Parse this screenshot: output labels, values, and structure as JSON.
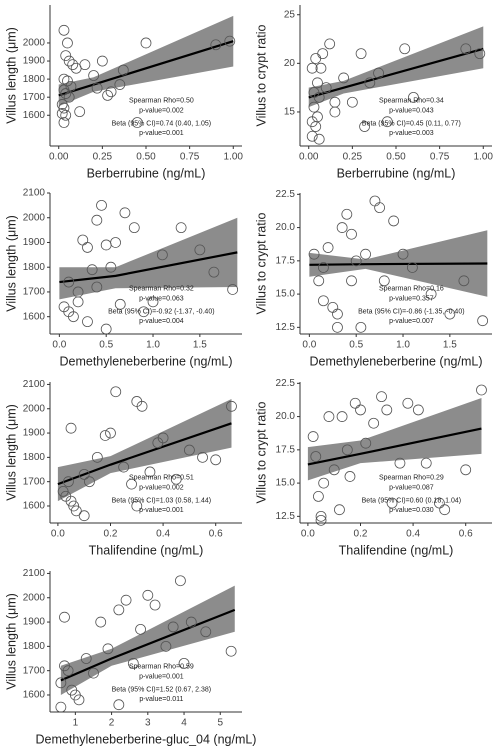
{
  "chart_data": [
    {
      "type": "scatter",
      "x_label": "Berberrubine (ng/mL)",
      "y_label": "Villus length (μm)",
      "x": [
        0.03,
        0.05,
        0.04,
        0.06,
        0.08,
        0.1,
        0.03,
        0.05,
        0.07,
        0.03,
        0.04,
        0.06,
        0.02,
        0.03,
        0.02,
        0.04,
        0.12,
        0.03,
        0.2,
        0.15,
        0.25,
        0.22,
        0.3,
        0.28,
        0.37,
        0.45,
        0.5,
        0.9,
        0.98,
        0.35
      ],
      "y": [
        2070,
        2000,
        1930,
        1900,
        1880,
        1860,
        1800,
        1790,
        1760,
        1740,
        1720,
        1700,
        1660,
        1640,
        1610,
        1600,
        1620,
        1560,
        1820,
        1880,
        1900,
        1750,
        1730,
        1710,
        1850,
        1560,
        2000,
        1990,
        2010,
        1770
      ],
      "fit": {
        "x": [
          0,
          0.2,
          1
        ],
        "y": [
          1710,
          1770,
          2010
        ],
        "lower": [
          1650,
          1730,
          1870
        ],
        "upper": [
          1770,
          1810,
          2150
        ]
      },
      "annotations": [
        "Spearman Rho=0.50",
        "p-value=0.002",
        "Beta (95% CI)=0.74 (0.40, 1.05)",
        "p-value=0.001"
      ],
      "xlim": [
        -0.05,
        1.05
      ],
      "ylim": [
        1430,
        2210
      ],
      "xticks": [
        {
          "value": 0,
          "label": "0.00"
        },
        {
          "value": 0.25,
          "label": "0.25"
        },
        {
          "value": 0.5,
          "label": "0.50"
        },
        {
          "value": 0.75,
          "label": "0.75"
        },
        {
          "value": 1,
          "label": "1.00"
        }
      ],
      "yticks": [
        1600,
        1700,
        1800,
        1900,
        2000
      ],
      "point_color": "#555555",
      "band_color": "#8c8c8c",
      "line_color": "#000000"
    },
    {
      "type": "scatter",
      "x_label": "Berberrubine (ng/mL)",
      "y_label": "Villus to crypt ratio",
      "x": [
        0.02,
        0.04,
        0.05,
        0.03,
        0.06,
        0.03,
        0.05,
        0.04,
        0.02,
        0.06,
        0.1,
        0.12,
        0.08,
        0.15,
        0.2,
        0.25,
        0.15,
        0.35,
        0.3,
        0.32,
        0.4,
        0.45,
        0.55,
        0.6,
        0.9,
        0.98,
        0.02,
        0.07
      ],
      "y": [
        19.5,
        20.5,
        18,
        17,
        16.5,
        15.5,
        14.5,
        13.5,
        12.5,
        12.2,
        17.5,
        22,
        21,
        16,
        18.5,
        16,
        15,
        18,
        21,
        13.5,
        19,
        14,
        21.5,
        16.5,
        21.5,
        21,
        14,
        19.5
      ],
      "fit": {
        "x": [
          0,
          0.2,
          1
        ],
        "y": [
          16.5,
          17.5,
          21.5
        ],
        "lower": [
          15.5,
          16.9,
          19.5
        ],
        "upper": [
          17.5,
          18.2,
          23.8
        ]
      },
      "annotations": [
        "Spearman Rho=0.34",
        "p-value=0.043",
        "Beta (95% CI)=0.45 (0.11, 0.77)",
        "p-value=0.003"
      ],
      "xlim": [
        -0.05,
        1.05
      ],
      "ylim": [
        11.5,
        26
      ],
      "xticks": [
        {
          "value": 0,
          "label": "0.00"
        },
        {
          "value": 0.25,
          "label": "0.25"
        },
        {
          "value": 0.5,
          "label": "0.50"
        },
        {
          "value": 0.75,
          "label": "0.75"
        },
        {
          "value": 1,
          "label": "1.00"
        }
      ],
      "yticks": [
        15,
        20,
        25
      ],
      "point_color": "#555555",
      "band_color": "#8c8c8c",
      "line_color": "#000000"
    },
    {
      "type": "scatter",
      "x_label": "Demethyleneberberine (ng/mL)",
      "y_label": "Villus length (μm)",
      "x": [
        0.05,
        0.1,
        0.15,
        0.2,
        0.2,
        0.25,
        0.3,
        0.35,
        0.4,
        0.45,
        0.5,
        0.55,
        0.5,
        0.6,
        0.65,
        0.7,
        0.8,
        0.9,
        1.0,
        1.1,
        1.3,
        1.5,
        1.65,
        1.85,
        0.3,
        0.4,
        0.1
      ],
      "y": [
        1640,
        1620,
        1600,
        1700,
        1660,
        1910,
        1880,
        1790,
        1990,
        2050,
        1890,
        1800,
        1550,
        1900,
        1650,
        2020,
        1960,
        1620,
        1660,
        1850,
        1960,
        1870,
        1780,
        1710,
        1580,
        1720,
        1740
      ],
      "fit": {
        "x": [
          0,
          0.6,
          1.9
        ],
        "y": [
          1740,
          1765,
          1860
        ],
        "lower": [
          1670,
          1715,
          1720
        ],
        "upper": [
          1800,
          1800,
          2000
        ]
      },
      "annotations": [
        "Spearman Rho=0.32",
        "p-value=0.063",
        "Beta (95% CI)=-0.92 (-1.37, -0.40)",
        "p-value=0.004"
      ],
      "xlim": [
        -0.1,
        1.95
      ],
      "ylim": [
        1530,
        2100
      ],
      "xticks": [
        {
          "value": 0,
          "label": "0.0"
        },
        {
          "value": 0.5,
          "label": "0.5"
        },
        {
          "value": 1,
          "label": "1.0"
        },
        {
          "value": 1.5,
          "label": "1.5"
        }
      ],
      "yticks": [
        1600,
        1700,
        1800,
        1900,
        2000,
        2100
      ],
      "point_color": "#555555",
      "band_color": "#8c8c8c",
      "line_color": "#000000"
    },
    {
      "type": "scatter",
      "x_label": "Demethyleneberberine (ng/mL)",
      "y_label": "Villus to crypt ratio",
      "x": [
        0.05,
        0.1,
        0.15,
        0.2,
        0.25,
        0.3,
        0.35,
        0.4,
        0.45,
        0.5,
        0.55,
        0.6,
        0.7,
        0.75,
        0.8,
        0.9,
        1.0,
        1.1,
        1.3,
        1.5,
        1.65,
        1.85,
        0.3,
        0.45,
        0.15
      ],
      "y": [
        18,
        16,
        14.5,
        18.5,
        14,
        13.5,
        20,
        21,
        16,
        17.5,
        12.5,
        18,
        22,
        21.5,
        16,
        20.5,
        18,
        17,
        15,
        13.5,
        16,
        13,
        12.5,
        19.5,
        17
      ],
      "fit": {
        "x": [
          0,
          0.6,
          1.9
        ],
        "y": [
          17.2,
          17.25,
          17.3
        ],
        "lower": [
          16.3,
          16.9,
          14.8
        ],
        "upper": [
          18.1,
          17.6,
          19.8
        ]
      },
      "annotations": [
        "Spearman Rho=0.16",
        "p-value=0.357",
        "Beta (95% CI)=-0.86 (-1.35, -0.40)",
        "p-value=0.007"
      ],
      "xlim": [
        -0.1,
        1.95
      ],
      "ylim": [
        12,
        22.6
      ],
      "xticks": [
        {
          "value": 0,
          "label": "0.0"
        },
        {
          "value": 0.5,
          "label": "0.5"
        },
        {
          "value": 1,
          "label": "1.0"
        },
        {
          "value": 1.5,
          "label": "1.5"
        }
      ],
      "yticks": [
        {
          "value": 12.5,
          "label": "12.5"
        },
        {
          "value": 15,
          "label": "15.0"
        },
        {
          "value": 17.5,
          "label": "17.5"
        },
        {
          "value": 20,
          "label": "20.0"
        },
        {
          "value": 22.5,
          "label": "22.5"
        }
      ],
      "point_color": "#555555",
      "band_color": "#8c8c8c",
      "line_color": "#000000"
    },
    {
      "type": "scatter",
      "x_label": "Thalifendine (ng/mL)",
      "y_label": "Villus length (μm)",
      "x": [
        0.02,
        0.03,
        0.04,
        0.05,
        0.06,
        0.07,
        0.05,
        0.1,
        0.12,
        0.15,
        0.18,
        0.2,
        0.22,
        0.25,
        0.28,
        0.3,
        0.32,
        0.35,
        0.38,
        0.4,
        0.45,
        0.5,
        0.55,
        0.6,
        0.66,
        0.1,
        0.3
      ],
      "y": [
        1660,
        1640,
        1700,
        1620,
        1600,
        1580,
        1920,
        1730,
        1700,
        1800,
        1890,
        1900,
        2070,
        1760,
        1690,
        2030,
        2010,
        1740,
        1860,
        1880,
        1710,
        1830,
        1800,
        1790,
        2010,
        1560,
        1600
      ],
      "fit": {
        "x": [
          0,
          0.2,
          0.66
        ],
        "y": [
          1690,
          1770,
          1940
        ],
        "lower": [
          1620,
          1735,
          1840
        ],
        "upper": [
          1760,
          1805,
          2040
        ]
      },
      "annotations": [
        "Spearman Rho=0.51",
        "p-value=0.002",
        "Beta (95% CI)=1.03 (0.58, 1.44)",
        "p-value=0.001"
      ],
      "xlim": [
        -0.03,
        0.7
      ],
      "ylim": [
        1530,
        2110
      ],
      "xticks": [
        {
          "value": 0,
          "label": "0.0"
        },
        {
          "value": 0.2,
          "label": "0.2"
        },
        {
          "value": 0.4,
          "label": "0.4"
        },
        {
          "value": 0.6,
          "label": "0.6"
        }
      ],
      "yticks": [
        1600,
        1700,
        1800,
        1900,
        2000,
        2100
      ],
      "point_color": "#555555",
      "band_color": "#8c8c8c",
      "line_color": "#000000"
    },
    {
      "type": "scatter",
      "x_label": "Thalifendine (ng/mL)",
      "y_label": "Villus to crypt ratio",
      "x": [
        0.02,
        0.03,
        0.04,
        0.05,
        0.06,
        0.08,
        0.1,
        0.12,
        0.13,
        0.15,
        0.16,
        0.18,
        0.2,
        0.22,
        0.25,
        0.28,
        0.3,
        0.32,
        0.35,
        0.38,
        0.42,
        0.45,
        0.5,
        0.52,
        0.6,
        0.66,
        0.05
      ],
      "y": [
        18.5,
        17,
        14,
        12.5,
        15,
        20,
        16,
        13,
        20,
        17.5,
        15.5,
        21,
        20.5,
        18,
        19.5,
        21.5,
        20.5,
        13.5,
        16.5,
        21,
        20.5,
        16.5,
        13.5,
        13,
        16,
        22,
        12.2
      ],
      "fit": {
        "x": [
          0,
          0.2,
          0.66
        ],
        "y": [
          16.4,
          17.2,
          19.1
        ],
        "lower": [
          15.2,
          16.5,
          17.2
        ],
        "upper": [
          17.7,
          18.2,
          21.4
        ]
      },
      "annotations": [
        "Spearman Rho=0.29",
        "p-value=0.087",
        "Beta (95% CI)=0.60 (0.18, 1.04)",
        "p-value=0.030"
      ],
      "xlim": [
        -0.03,
        0.7
      ],
      "ylim": [
        12,
        22.6
      ],
      "xticks": [
        {
          "value": 0,
          "label": "0.0"
        },
        {
          "value": 0.2,
          "label": "0.2"
        },
        {
          "value": 0.4,
          "label": "0.4"
        },
        {
          "value": 0.6,
          "label": "0.6"
        }
      ],
      "yticks": [
        {
          "value": 12.5,
          "label": "12.5"
        },
        {
          "value": 15,
          "label": "15.0"
        },
        {
          "value": 17.5,
          "label": "17.5"
        },
        {
          "value": 20,
          "label": "20.0"
        },
        {
          "value": 22.5,
          "label": "22.5"
        }
      ],
      "point_color": "#555555",
      "band_color": "#8c8c8c",
      "line_color": "#000000"
    },
    {
      "type": "scatter",
      "x_label": "Demethyleneberberine-gluc_04 (ng/mL)",
      "y_label": "Villus length (μm)",
      "x": [
        0.6,
        0.7,
        0.8,
        0.9,
        1.0,
        0.7,
        1.1,
        1.3,
        1.5,
        1.7,
        1.9,
        2.2,
        2.4,
        2.6,
        2.8,
        3.0,
        3.2,
        3.5,
        3.7,
        3.9,
        4.0,
        4.2,
        4.6,
        5.3,
        0.6,
        2.2
      ],
      "y": [
        1650,
        1720,
        1700,
        1620,
        1600,
        1920,
        1580,
        1750,
        1690,
        1900,
        1790,
        1950,
        1990,
        1730,
        1870,
        2010,
        1970,
        1800,
        1880,
        2070,
        1730,
        1900,
        1860,
        1780,
        1550,
        1560
      ],
      "fit": {
        "x": [
          0.6,
          2.0,
          5.4
        ],
        "y": [
          1660,
          1750,
          1950
        ],
        "lower": [
          1600,
          1720,
          1860
        ],
        "upper": [
          1720,
          1790,
          2050
        ]
      },
      "annotations": [
        "Spearman Rho=0.59",
        "p-value=0.001",
        "Beta (95% CI)=1.52 (0.67, 2.38)",
        "p-value=0.011"
      ],
      "xlim": [
        0.3,
        5.6
      ],
      "ylim": [
        1530,
        2110
      ],
      "xticks": [
        1,
        2,
        3,
        4,
        5
      ],
      "yticks": [
        1600,
        1700,
        1800,
        1900,
        2000,
        2100
      ],
      "point_color": "#555555",
      "band_color": "#8c8c8c",
      "line_color": "#000000"
    }
  ]
}
